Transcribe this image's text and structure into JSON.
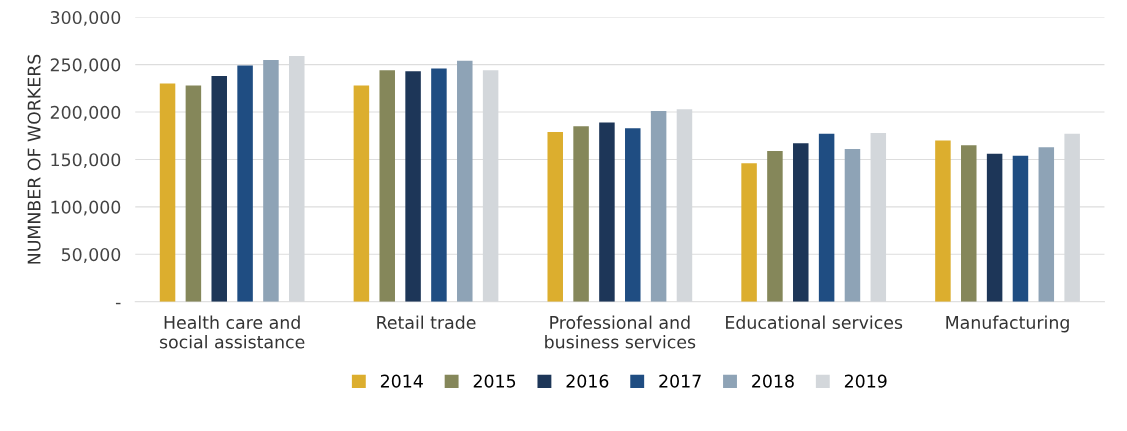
{
  "chart_data": {
    "type": "bar",
    "ylabel": "NUMNBER OF WORKERS",
    "categories": [
      "Health care and\nsocial assistance",
      "Retail trade",
      "Professional and\nbusiness services",
      "Educational services",
      "Manufacturing"
    ],
    "series": [
      {
        "name": "2014",
        "color": "#dcae2e",
        "values": [
          230000,
          228000,
          179000,
          146000,
          170000
        ]
      },
      {
        "name": "2015",
        "color": "#85875a",
        "values": [
          228000,
          244000,
          185000,
          159000,
          165000
        ]
      },
      {
        "name": "2016",
        "color": "#1d3658",
        "values": [
          238000,
          243000,
          189000,
          167000,
          156000
        ]
      },
      {
        "name": "2017",
        "color": "#1f4d82",
        "values": [
          249000,
          246000,
          183000,
          177000,
          154000
        ]
      },
      {
        "name": "2018",
        "color": "#8ea3b6",
        "values": [
          255000,
          254000,
          201000,
          161000,
          163000
        ]
      },
      {
        "name": "2019",
        "color": "#d3d7db",
        "values": [
          259000,
          244000,
          203000,
          178000,
          177000
        ]
      }
    ],
    "ylim": [
      0,
      300000
    ],
    "yticks": [
      {
        "value": 0,
        "label": "-"
      },
      {
        "value": 50000,
        "label": "50,000"
      },
      {
        "value": 100000,
        "label": "100,000"
      },
      {
        "value": 150000,
        "label": "150,000"
      },
      {
        "value": 200000,
        "label": "200,000"
      },
      {
        "value": 250000,
        "label": "250,000"
      },
      {
        "value": 300000,
        "label": "300,000"
      }
    ],
    "grid": "y",
    "legend": "bottom"
  }
}
